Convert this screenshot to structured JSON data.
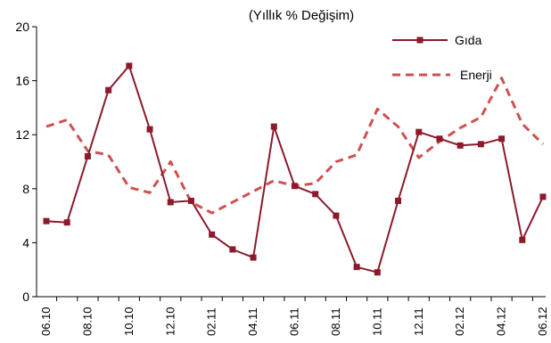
{
  "chart_data": {
    "type": "line",
    "title": "(Yıllık  % Değişim)",
    "xlabel": "",
    "ylabel": "",
    "ylim": [
      0,
      20
    ],
    "yticks": [
      0,
      4,
      8,
      12,
      16,
      20
    ],
    "grid": false,
    "legend_position": "top-right",
    "categories": [
      "06.10",
      "07.10",
      "08.10",
      "09.10",
      "10.10",
      "11.10",
      "12.10",
      "01.11",
      "02.11",
      "03.11",
      "04.11",
      "05.11",
      "06.11",
      "07.11",
      "08.11",
      "09.11",
      "10.11",
      "11.11",
      "12.11",
      "01.12",
      "02.12",
      "03.12",
      "04.12",
      "05.12",
      "06.12"
    ],
    "xtick_labels": [
      "06.10",
      "08.10",
      "10.10",
      "12.10",
      "02.11",
      "04.11",
      "06.11",
      "08.11",
      "10.11",
      "12.11",
      "02.12",
      "04.12",
      "06.12"
    ],
    "series": [
      {
        "name": "Gıda",
        "color": "#8B1A2B",
        "style": "solid-square-markers",
        "values": [
          5.6,
          5.5,
          10.4,
          15.3,
          17.1,
          12.4,
          7.0,
          7.1,
          4.6,
          3.5,
          2.9,
          12.6,
          8.2,
          7.6,
          6.0,
          2.2,
          1.8,
          7.1,
          12.2,
          11.7,
          11.2,
          11.3,
          11.7,
          4.2,
          7.4
        ]
      },
      {
        "name": "Enerji",
        "color": "#D05050",
        "style": "dashed",
        "values": [
          12.6,
          13.1,
          10.8,
          10.5,
          8.1,
          7.7,
          10.0,
          7.0,
          6.2,
          7.0,
          7.8,
          8.6,
          8.2,
          8.4,
          10.0,
          10.5,
          13.9,
          12.6,
          10.3,
          11.5,
          12.5,
          13.3,
          16.2,
          12.8,
          11.3
        ]
      }
    ]
  }
}
